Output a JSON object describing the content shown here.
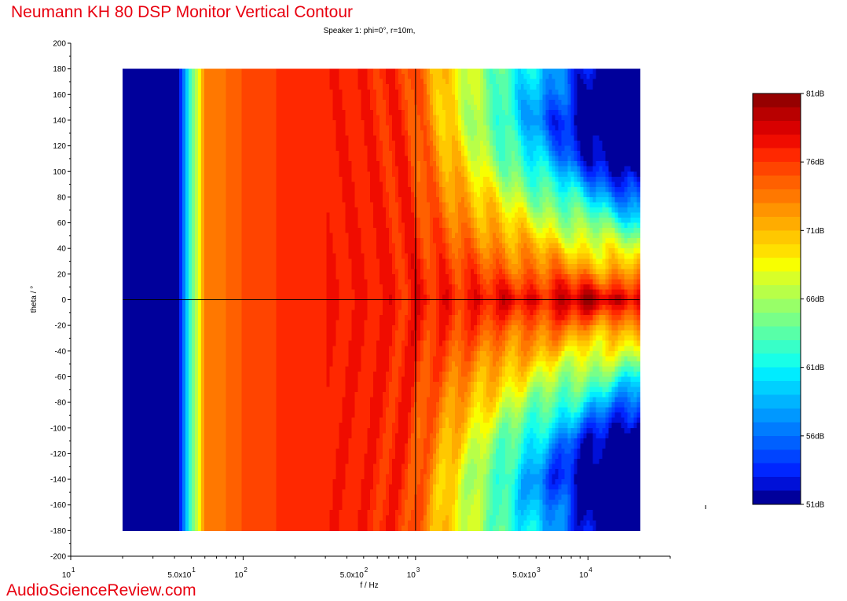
{
  "title": "Neumann KH 80 DSP Monitor Vertical Contour",
  "watermark": "AudioScienceReview.com",
  "chart_data": {
    "type": "heatmap",
    "subtitle": "Speaker 1: phi=0°, r=10m,",
    "xlabel": "f / Hz",
    "ylabel": "theta / °",
    "xscale": "log",
    "xlim": [
      10,
      30000
    ],
    "ylim": [
      -200,
      200
    ],
    "data_extent": {
      "x": [
        20,
        20000
      ],
      "y": [
        -180,
        180
      ]
    },
    "y_ticks": [
      200,
      180,
      160,
      140,
      120,
      100,
      80,
      60,
      40,
      20,
      0,
      -20,
      -40,
      -60,
      -80,
      -100,
      -120,
      -140,
      -160,
      -180,
      -200
    ],
    "x_tick_labels": [
      {
        "x": 10,
        "base": "10",
        "exp": "1"
      },
      {
        "x": 50,
        "base": "5.0x10",
        "exp": "1"
      },
      {
        "x": 100,
        "base": "10",
        "exp": "2"
      },
      {
        "x": 500,
        "base": "5.0x10",
        "exp": "2"
      },
      {
        "x": 1000,
        "base": "10",
        "exp": "3"
      },
      {
        "x": 5000,
        "base": "5.0x10",
        "exp": "3"
      },
      {
        "x": 10000,
        "base": "10",
        "exp": "4"
      }
    ],
    "crosshair": {
      "x": 1000,
      "y": 0
    },
    "colorbar": {
      "min": 51,
      "max": 81,
      "levels": 30,
      "labels": [
        "81dB",
        "76dB",
        "71dB",
        "66dB",
        "61dB",
        "56dB",
        "51dB"
      ],
      "colors": [
        "#00009b",
        "#0010d8",
        "#0026ff",
        "#0044ff",
        "#0060ff",
        "#007cff",
        "#0098ff",
        "#00b4ff",
        "#00d0ff",
        "#00ecff",
        "#18ffe8",
        "#38ffc8",
        "#58ffa8",
        "#78ff88",
        "#98ff68",
        "#b8ff48",
        "#d8ff28",
        "#f8ff00",
        "#ffe000",
        "#ffc800",
        "#ffac00",
        "#ff9400",
        "#ff7800",
        "#ff6000",
        "#ff4400",
        "#ff2800",
        "#f00c00",
        "#d80000",
        "#b80000",
        "#960000"
      ]
    },
    "description_points": [
      {
        "f": 20,
        "level_db": 51
      },
      {
        "f": 40,
        "level_db": 51
      },
      {
        "f": 50,
        "level_db": 66
      },
      {
        "f": 60,
        "level_db": 73
      },
      {
        "f": 100,
        "level_db": 74
      },
      {
        "f": 200,
        "level_db": 77
      },
      {
        "f": 500,
        "level_db": 77
      },
      {
        "f": 1000,
        "level_db": 78
      },
      {
        "f": 5000,
        "level_db": 78
      },
      {
        "f": 15000,
        "level_db": 80
      }
    ]
  },
  "colors": {
    "title": "#e8000f",
    "crosshair": "#000000"
  }
}
